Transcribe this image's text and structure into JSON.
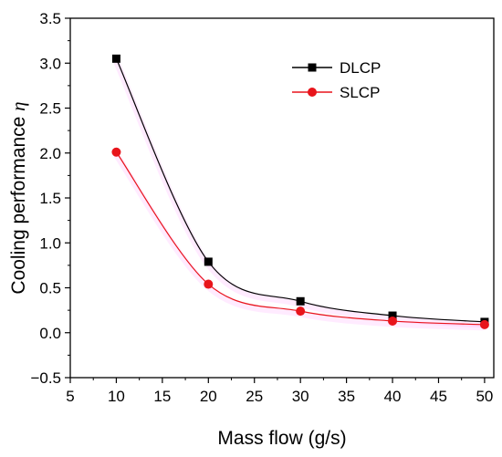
{
  "chart_data": {
    "type": "line",
    "title": "",
    "xlabel": "Mass flow (g/s)",
    "ylabel_text": "Cooling performance ",
    "ylabel_symbol": "η",
    "xlim": [
      5,
      51
    ],
    "ylim": [
      -0.5,
      3.5
    ],
    "xticks": [
      5,
      10,
      15,
      20,
      25,
      30,
      35,
      40,
      45,
      50
    ],
    "xtick_labels": [
      "5",
      "10",
      "15",
      "20",
      "25",
      "30",
      "35",
      "40",
      "45",
      "50"
    ],
    "yticks": [
      -0.5,
      0.0,
      0.5,
      1.0,
      1.5,
      2.0,
      2.5,
      3.0,
      3.5
    ],
    "ytick_labels": [
      "−0.5",
      "0.0",
      "0.5",
      "1.0",
      "1.5",
      "2.0",
      "2.5",
      "3.0",
      "3.5"
    ],
    "grid": false,
    "legend_position": "top-right",
    "x": [
      10,
      20,
      30,
      40,
      50
    ],
    "series": [
      {
        "name": "DLCP",
        "values": [
          3.05,
          0.79,
          0.35,
          0.19,
          0.12
        ],
        "color": "#000000",
        "marker": "square"
      },
      {
        "name": "SLCP",
        "values": [
          2.01,
          0.54,
          0.24,
          0.13,
          0.09
        ],
        "color": "#e8141b",
        "marker": "circle"
      }
    ],
    "sign_shadow_color": "#ff00ff"
  }
}
